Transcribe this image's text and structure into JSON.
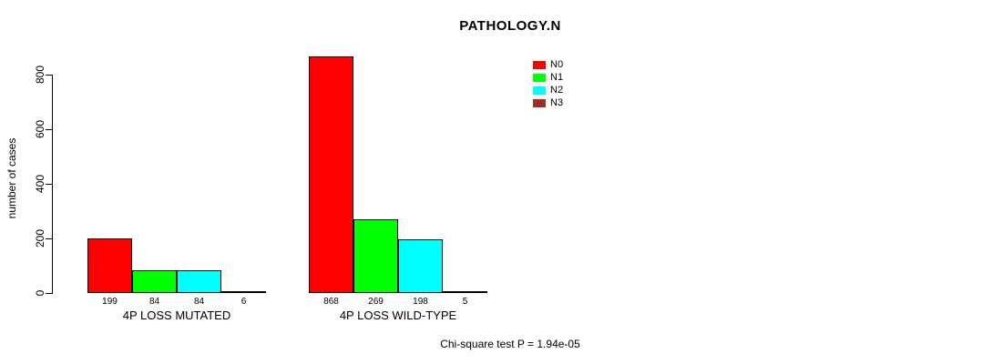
{
  "chart_data": {
    "type": "bar",
    "title": "PATHOLOGY.N",
    "ylabel": "number of cases",
    "xlabel": "",
    "ylim": [
      0,
      800
    ],
    "yticks": [
      0,
      200,
      400,
      600,
      800
    ],
    "grid": false,
    "legend_position": "top-right",
    "categories": [
      "4P LOSS MUTATED",
      "4P LOSS WILD-TYPE"
    ],
    "series": [
      {
        "name": "N0",
        "color": "#FF0000",
        "values": [
          199,
          868
        ]
      },
      {
        "name": "N1",
        "color": "#00FF00",
        "values": [
          84,
          269
        ]
      },
      {
        "name": "N2",
        "color": "#00FFFF",
        "values": [
          84,
          198
        ]
      },
      {
        "name": "N3",
        "color": "#A52A2A",
        "values": [
          6,
          5
        ]
      }
    ],
    "bar_value_labels": [
      [
        "199",
        "84",
        "84",
        "6"
      ],
      [
        "868",
        "269",
        "198",
        "5"
      ]
    ],
    "annotation": "Chi-square test P = 1.94e-05"
  }
}
